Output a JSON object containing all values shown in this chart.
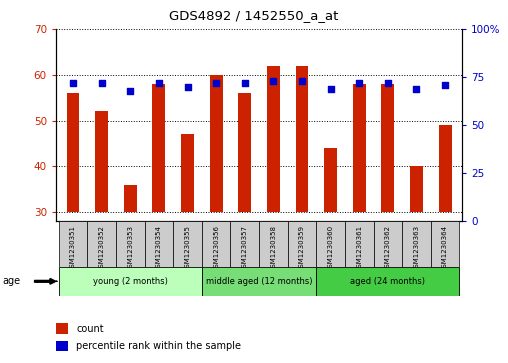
{
  "title": "GDS4892 / 1452550_a_at",
  "samples": [
    "GSM1230351",
    "GSM1230352",
    "GSM1230353",
    "GSM1230354",
    "GSM1230355",
    "GSM1230356",
    "GSM1230357",
    "GSM1230358",
    "GSM1230359",
    "GSM1230360",
    "GSM1230361",
    "GSM1230362",
    "GSM1230363",
    "GSM1230364"
  ],
  "counts": [
    56,
    52,
    36,
    58,
    47,
    60,
    56,
    62,
    62,
    44,
    58,
    58,
    40,
    49
  ],
  "percentiles": [
    72,
    72,
    68,
    72,
    70,
    72,
    72,
    73,
    73,
    69,
    72,
    72,
    69,
    71
  ],
  "bar_bottom": 30,
  "ylim_left": [
    28,
    70
  ],
  "ylim_right": [
    0,
    100
  ],
  "yticks_left": [
    30,
    40,
    50,
    60,
    70
  ],
  "yticks_right": [
    0,
    25,
    50,
    75,
    100
  ],
  "bar_color": "#cc2200",
  "dot_color": "#0000cc",
  "groups": [
    {
      "label": "young (2 months)",
      "start": 0,
      "end": 5,
      "color": "#bbffbb"
    },
    {
      "label": "middle aged (12 months)",
      "start": 5,
      "end": 9,
      "color": "#77dd77"
    },
    {
      "label": "aged (24 months)",
      "start": 9,
      "end": 14,
      "color": "#44cc44"
    }
  ],
  "legend_count_label": "count",
  "legend_pct_label": "percentile rank within the sample",
  "age_label": "age",
  "tick_color_left": "#cc2200",
  "tick_color_right": "#0000cc",
  "bar_width": 0.45,
  "sample_bg": "#cccccc"
}
